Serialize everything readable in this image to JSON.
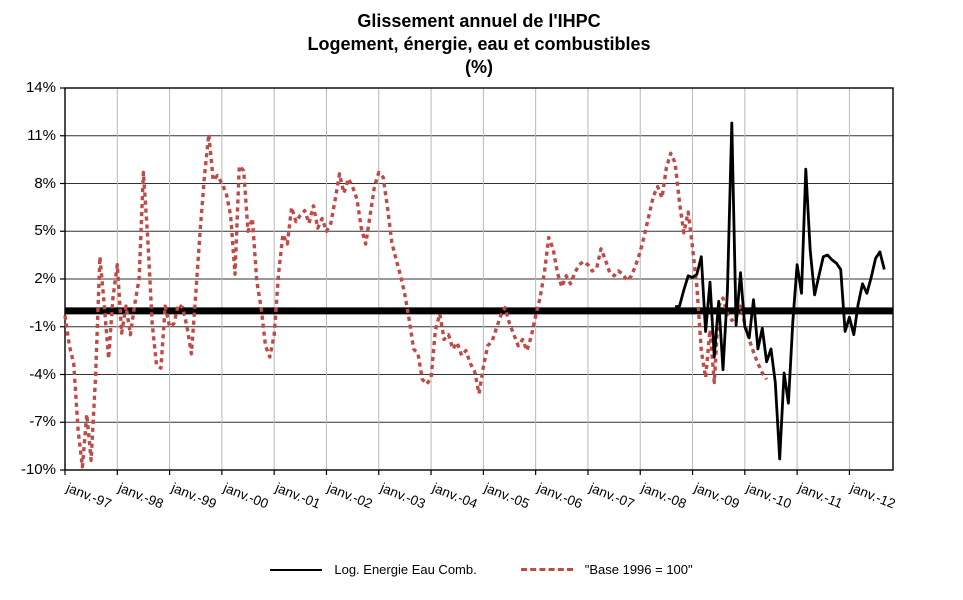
{
  "title": {
    "line1": "Glissement annuel de l'IHPC",
    "line2": "Logement, énergie, eau et combustibles",
    "line3": "(%)"
  },
  "legend": [
    {
      "label": "Log. Energie Eau Comb.",
      "style": "solid",
      "color": "#000000"
    },
    {
      "label": "\"Base 1996 = 100\"",
      "style": "dashed",
      "color": "#be4b48"
    }
  ],
  "chart_data": {
    "type": "line",
    "title": "Glissement annuel de l'IHPC — Logement, énergie, eau et combustibles (%)",
    "grid": true,
    "legend_position": "bottom",
    "ylim": [
      -10,
      14
    ],
    "ytick_step": 3,
    "y_ticks": [
      {
        "label": "14%",
        "value": 14
      },
      {
        "label": "11%",
        "value": 11
      },
      {
        "label": "8%",
        "value": 8
      },
      {
        "label": "5%",
        "value": 5
      },
      {
        "label": "2%",
        "value": 2
      },
      {
        "label": "-1%",
        "value": -1
      },
      {
        "label": "-4%",
        "value": -4
      },
      {
        "label": "-7%",
        "value": -7
      },
      {
        "label": "-10%",
        "value": -10
      }
    ],
    "x_tick_labels": [
      "janv.-97",
      "janv.-98",
      "janv.-99",
      "janv.-00",
      "janv.-01",
      "janv.-02",
      "janv.-03",
      "janv.-04",
      "janv.-05",
      "janv.-06",
      "janv.-07",
      "janv.-08",
      "janv.-09",
      "janv.-10",
      "janv.-11",
      "janv.-12"
    ],
    "x_months_per_tick": 12,
    "x_total_months": 190,
    "zero_line_value": 0,
    "zero_line_width": 7,
    "series": [
      {
        "name": "Log. Energie Eau Comb.",
        "color": "#000000",
        "style": "solid",
        "start_month": 140,
        "monthly_values": [
          0.25,
          0.3,
          1.3,
          2.2,
          2.1,
          2.3,
          3.4,
          -1.3,
          1.8,
          -2.9,
          0.6,
          -3.7,
          1.2,
          11.8,
          -0.9,
          2.4,
          -1.0,
          -1.7,
          0.7,
          -2.4,
          -1.1,
          -3.2,
          -2.4,
          -4.5,
          -9.3,
          -3.9,
          -5.8,
          -0.7,
          2.9,
          1.1,
          8.9,
          3.8,
          1.0,
          2.2,
          3.4,
          3.5,
          3.2,
          3.0,
          2.6,
          -1.3,
          -0.4,
          -1.5,
          0.4,
          1.7,
          1.1,
          2.1,
          3.3,
          3.7,
          2.6
        ]
      },
      {
        "name": "\"Base 1996 = 100\"",
        "color": "#be4b48",
        "style": "dashed",
        "start_month": 0,
        "monthly_values": [
          -0.3,
          -2.2,
          -3.3,
          -7.5,
          -9.8,
          -6.5,
          -9.4,
          -4.2,
          3.4,
          0.4,
          -3.0,
          0.8,
          2.9,
          -1.4,
          0.3,
          -1.5,
          0.4,
          2.0,
          8.7,
          4.5,
          -0.8,
          -3.4,
          -3.6,
          0.3,
          -1.0,
          -0.8,
          0.4,
          0.2,
          -1.0,
          -2.7,
          1.0,
          5.0,
          8.5,
          11.1,
          8.2,
          8.5,
          8.0,
          7.4,
          6.0,
          2.3,
          9.1,
          8.8,
          5.0,
          5.8,
          1.9,
          0.2,
          -2.2,
          -2.9,
          -1.5,
          2.3,
          4.8,
          4.2,
          6.5,
          5.6,
          6.0,
          6.3,
          5.5,
          6.6,
          5.2,
          5.8,
          5.0,
          5.5,
          7.0,
          8.6,
          7.4,
          8.3,
          7.8,
          7.0,
          5.2,
          4.2,
          6.0,
          7.8,
          8.7,
          8.4,
          6.5,
          4.3,
          3.2,
          2.2,
          1.0,
          -0.6,
          -2.4,
          -2.7,
          -4.3,
          -4.6,
          -4.2,
          -1.2,
          -0.2,
          -1.8,
          -1.5,
          -2.4,
          -2.0,
          -2.8,
          -2.5,
          -3.3,
          -3.8,
          -5.2,
          -3.5,
          -2.2,
          -1.9,
          -1.1,
          -0.3,
          0.2,
          -0.8,
          -1.5,
          -2.2,
          -1.8,
          -2.5,
          -1.6,
          -0.3,
          0.8,
          2.4,
          4.6,
          3.9,
          2.4,
          1.5,
          2.2,
          1.7,
          2.4,
          2.9,
          3.1,
          2.9,
          2.5,
          2.7,
          3.9,
          3.2,
          2.4,
          2.2,
          2.5,
          2.3,
          1.9,
          2.2,
          2.9,
          3.7,
          4.8,
          6.0,
          7.2,
          7.8,
          7.1,
          9.0,
          9.9,
          9.3,
          6.8,
          4.9,
          6.2,
          4.0,
          1.5,
          -2.5,
          -4.2,
          -1.2,
          -4.5,
          0.3,
          0.8,
          -0.2,
          -0.6,
          -0.4,
          0.3,
          -0.8,
          -1.8,
          -2.6,
          -3.3,
          -3.9,
          -4.3
        ]
      }
    ]
  }
}
